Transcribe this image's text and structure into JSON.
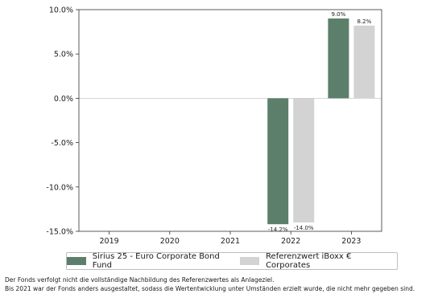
{
  "chart_data": {
    "type": "bar",
    "categories": [
      "2019",
      "2020",
      "2021",
      "2022",
      "2023"
    ],
    "series": [
      {
        "name": "Sirius 25 - Euro Corporate Bond Fund",
        "values": [
          null,
          null,
          null,
          -14.2,
          9.0
        ],
        "color": "#5b7f6b"
      },
      {
        "name": "Referenzwert iBoxx € Corporates",
        "values": [
          null,
          null,
          null,
          -14.0,
          8.2
        ],
        "color": "#d3d3d3"
      }
    ],
    "data_labels": {
      "series_0": [
        "",
        "",
        "",
        "-14.2%",
        "9.0%"
      ],
      "series_1": [
        "",
        "",
        "",
        "-14.0%",
        "8.2%"
      ]
    },
    "yticks": [
      10.0,
      5.0,
      0.0,
      -5.0,
      -10.0,
      -15.0
    ],
    "ytick_labels": [
      "10.0%",
      "5.0%",
      "0.0%",
      "-5.0%",
      "-10.0%",
      "-15.0%"
    ],
    "ylim": [
      -15.0,
      10.0
    ],
    "grid": false,
    "legend": "bottom"
  },
  "notes": [
    "Der Fonds verfolgt nicht die vollständige Nachbildung des Referenzwertes als Anlageziel.",
    "Bis 2021 war der Fonds anders ausgestaltet, sodass die Wertentwicklung unter Umständen erzielt wurde, die nicht mehr gegeben sind."
  ]
}
